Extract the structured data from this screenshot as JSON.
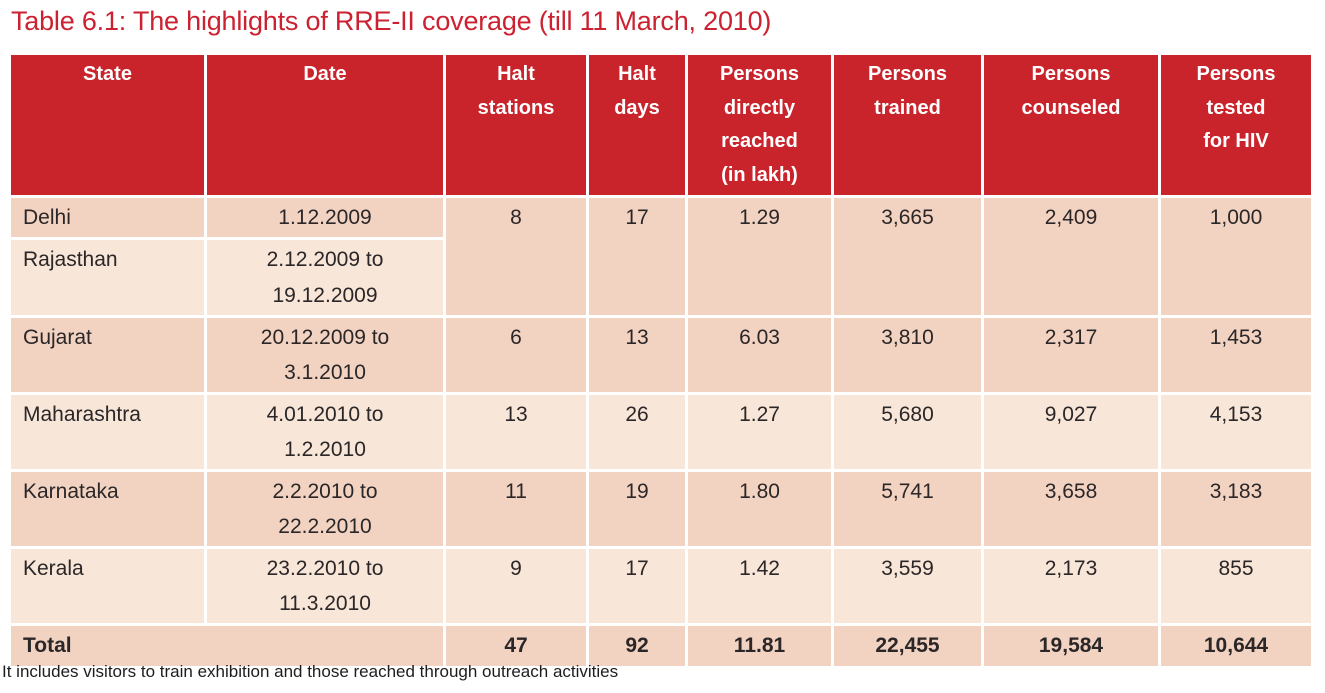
{
  "title": "Table 6.1: The highlights of RRE-II coverage (till 11 March, 2010)",
  "footnote": "It includes visitors to train exhibition and those reached through outreach activities",
  "colors": {
    "header_bg": "#c9232b",
    "header_text": "#ffffff",
    "title_text": "#cb2130",
    "row_dark": "#f2d3c2",
    "row_light": "#f8e6d8",
    "cell_text": "#2b2627"
  },
  "table": {
    "columns": [
      "State",
      "Date",
      "Halt\nstations",
      "Halt\ndays",
      "Persons\ndirectly\nreached\n(in lakh)",
      "Persons\ntrained",
      "Persons\ncounseled",
      "Persons\ntested\nfor HIV"
    ],
    "rows": {
      "delhi": {
        "state": "Delhi",
        "date": "1.12.2009",
        "halt_stations": "8",
        "halt_days": "17",
        "persons_reached": "1.29",
        "persons_trained": "3,665",
        "persons_counseled": "2,409",
        "persons_tested": "1,000"
      },
      "rajasthan": {
        "state": "Rajasthan",
        "date": "2.12.2009 to\n19.12.2009"
      },
      "gujarat": {
        "state": "Gujarat",
        "date": "20.12.2009 to\n3.1.2010",
        "halt_stations": "6",
        "halt_days": "13",
        "persons_reached": "6.03",
        "persons_trained": "3,810",
        "persons_counseled": "2,317",
        "persons_tested": "1,453"
      },
      "maharashtra": {
        "state": "Maharashtra",
        "date": "4.01.2010 to\n1.2.2010",
        "halt_stations": "13",
        "halt_days": "26",
        "persons_reached": "1.27",
        "persons_trained": "5,680",
        "persons_counseled": "9,027",
        "persons_tested": "4,153"
      },
      "karnataka": {
        "state": "Karnataka",
        "date": "2.2.2010 to\n22.2.2010",
        "halt_stations": "11",
        "halt_days": "19",
        "persons_reached": "1.80",
        "persons_trained": "5,741",
        "persons_counseled": "3,658",
        "persons_tested": "3,183"
      },
      "kerala": {
        "state": "Kerala",
        "date": "23.2.2010 to\n11.3.2010",
        "halt_stations": "9",
        "halt_days": "17",
        "persons_reached": "1.42",
        "persons_trained": "3,559",
        "persons_counseled": "2,173",
        "persons_tested": "855"
      },
      "total": {
        "label": "Total",
        "halt_stations": "47",
        "halt_days": "92",
        "persons_reached": "11.81",
        "persons_trained": "22,455",
        "persons_counseled": "19,584",
        "persons_tested": "10,644"
      }
    }
  }
}
